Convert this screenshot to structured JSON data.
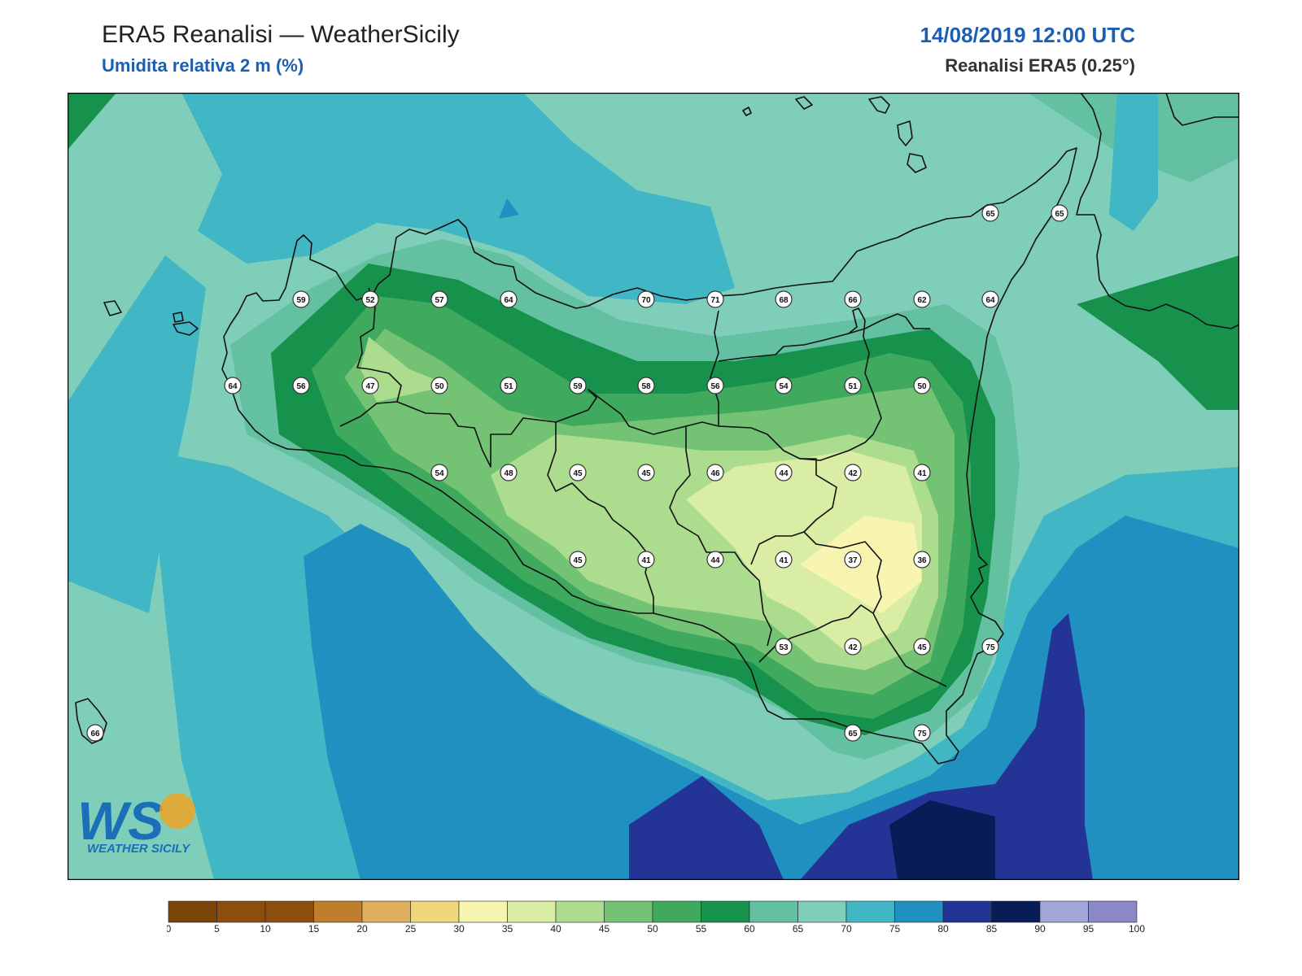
{
  "header": {
    "title": "ERA5 Reanalisi — WeatherSicily",
    "variable": "Umidita relativa 2 m (%)",
    "datetime": "14/08/2019 12:00 UTC",
    "source": "Reanalisi ERA5 (0.25°)"
  },
  "logo": {
    "letters": "WS",
    "text": "WEATHER SICILY"
  },
  "colors": {
    "map_background": "#7fceb9",
    "coastline": "#111111",
    "label_fill": "#ffffff",
    "label_stroke": "#333333"
  },
  "colorbar": {
    "ticks": [
      "0",
      "5",
      "10",
      "15",
      "20",
      "25",
      "30",
      "35",
      "40",
      "45",
      "50",
      "55",
      "60",
      "65",
      "70",
      "75",
      "80",
      "85",
      "90",
      "95",
      "100"
    ],
    "colors": [
      "#7b4509",
      "#8c4e0e",
      "#8c4e0e",
      "#c07d2b",
      "#deaf5c",
      "#f1d77c",
      "#f7f5b0",
      "#d9eda4",
      "#acdc8e",
      "#74c375",
      "#3fa95d",
      "#17924c",
      "#63c0a0",
      "#7fceb9",
      "#41b6c4",
      "#1f90c0",
      "#243396",
      "#081d58",
      "#a2a7d9",
      "#8b89c6"
    ]
  },
  "station_values": [
    {
      "value": "65"
    },
    {
      "value": "65"
    },
    {
      "value": "59"
    },
    {
      "value": "52"
    },
    {
      "value": "57"
    },
    {
      "value": "64"
    },
    {
      "value": "70"
    },
    {
      "value": "71"
    },
    {
      "value": "68"
    },
    {
      "value": "66"
    },
    {
      "value": "62"
    },
    {
      "value": "64"
    },
    {
      "value": "64"
    },
    {
      "value": "56"
    },
    {
      "value": "47"
    },
    {
      "value": "50"
    },
    {
      "value": "51"
    },
    {
      "value": "59"
    },
    {
      "value": "58"
    },
    {
      "value": "56"
    },
    {
      "value": "54"
    },
    {
      "value": "51"
    },
    {
      "value": "50"
    },
    {
      "value": "54"
    },
    {
      "value": "48"
    },
    {
      "value": "45"
    },
    {
      "value": "45"
    },
    {
      "value": "46"
    },
    {
      "value": "44"
    },
    {
      "value": "42"
    },
    {
      "value": "41"
    },
    {
      "value": "45"
    },
    {
      "value": "41"
    },
    {
      "value": "44"
    },
    {
      "value": "41"
    },
    {
      "value": "37"
    },
    {
      "value": "36"
    },
    {
      "value": "53"
    },
    {
      "value": "42"
    },
    {
      "value": "45"
    },
    {
      "value": "75"
    },
    {
      "value": "66"
    },
    {
      "value": "65"
    },
    {
      "value": "75"
    }
  ]
}
